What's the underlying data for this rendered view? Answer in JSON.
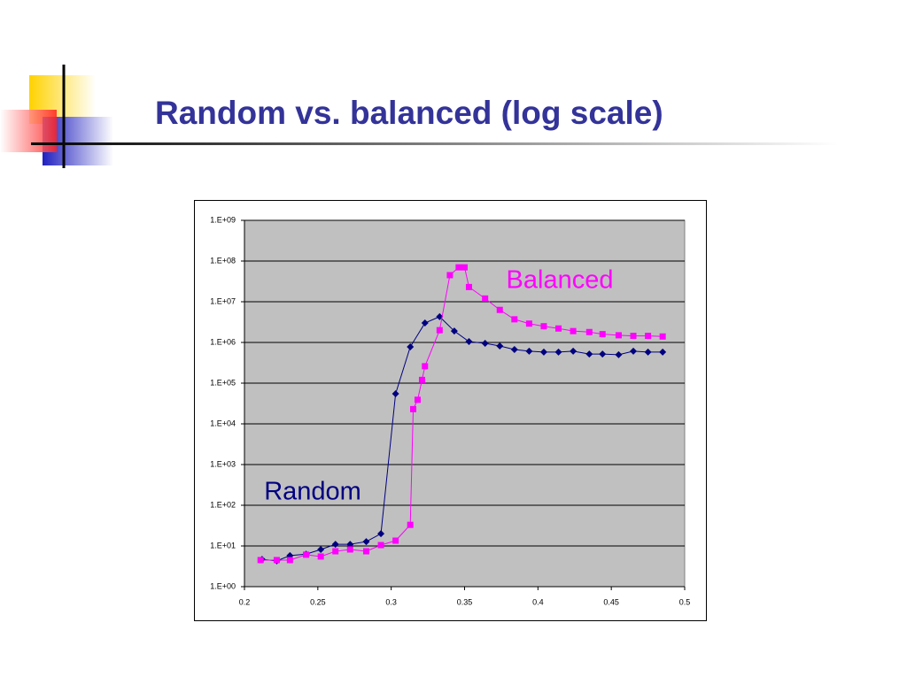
{
  "chart_data": {
    "type": "line",
    "title": "Random vs. balanced (log scale)",
    "log_scale": true,
    "grid": true,
    "xlim": [
      0.2,
      0.5
    ],
    "xticks": [
      0.2,
      0.25,
      0.3,
      0.35,
      0.4,
      0.45,
      0.5
    ],
    "ylim": [
      1,
      1000000000
    ],
    "yticks": [
      {
        "value": 1,
        "label": "1.E+00"
      },
      {
        "value": 10,
        "label": "1.E+01"
      },
      {
        "value": 100,
        "label": "1.E+02"
      },
      {
        "value": 1000,
        "label": "1.E+03"
      },
      {
        "value": 10000,
        "label": "1.E+04"
      },
      {
        "value": 100000,
        "label": "1.E+05"
      },
      {
        "value": 1000000,
        "label": "1.E+06"
      },
      {
        "value": 10000000,
        "label": "1.E+07"
      },
      {
        "value": 100000000,
        "label": "1.E+08"
      },
      {
        "value": 1000000000,
        "label": "1.E+09"
      }
    ],
    "series": [
      {
        "name": "Random",
        "color": "#000080",
        "marker": "diamond",
        "x": [
          0.212,
          0.222,
          0.231,
          0.242,
          0.252,
          0.262,
          0.272,
          0.283,
          0.293,
          0.303,
          0.313,
          0.323,
          0.333,
          0.343,
          0.353,
          0.364,
          0.374,
          0.384,
          0.394,
          0.404,
          0.414,
          0.424,
          0.435,
          0.444,
          0.455,
          0.465,
          0.475,
          0.485
        ],
        "values": [
          4.7,
          4.3,
          5.8,
          6.3,
          8.2,
          11,
          11,
          12.8,
          20,
          55000,
          780000,
          3000000,
          4300000,
          1900000,
          1050000,
          950000,
          820000,
          670000,
          610000,
          580000,
          580000,
          610000,
          520000,
          520000,
          500000,
          610000,
          580000,
          580000
        ]
      },
      {
        "name": "Balanced",
        "color": "#ff00ff",
        "marker": "square",
        "x": [
          0.211,
          0.222,
          0.231,
          0.242,
          0.252,
          0.262,
          0.272,
          0.283,
          0.293,
          0.303,
          0.313,
          0.315,
          0.318,
          0.321,
          0.323,
          0.333,
          0.34,
          0.346,
          0.35,
          0.353,
          0.364,
          0.374,
          0.384,
          0.394,
          0.404,
          0.414,
          0.424,
          0.435,
          0.444,
          0.455,
          0.465,
          0.475,
          0.485
        ],
        "values": [
          4.5,
          4.5,
          4.5,
          6.1,
          5.5,
          7.4,
          8.2,
          7.4,
          10.5,
          13.5,
          33,
          23000,
          39000,
          120000,
          260000,
          2000000,
          45000000,
          70000000,
          70000000,
          23000000,
          12000000,
          6300000,
          3700000,
          2900000,
          2500000,
          2200000,
          1900000,
          1800000,
          1600000,
          1500000,
          1450000,
          1450000,
          1400000
        ]
      }
    ]
  }
}
